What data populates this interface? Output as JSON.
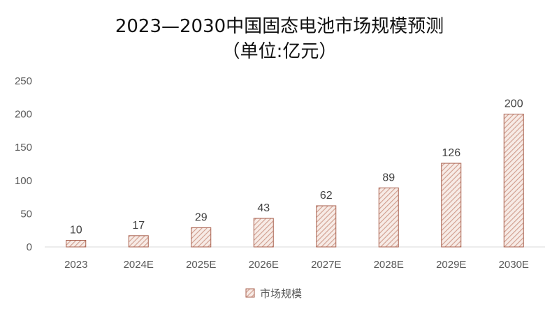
{
  "chart_data": {
    "type": "bar",
    "title": "2023—2030中国固态电池市场规模预测",
    "subtitle": "（单位:亿元）",
    "categories": [
      "2023",
      "2024E",
      "2025E",
      "2026E",
      "2027E",
      "2028E",
      "2029E",
      "2030E"
    ],
    "series": [
      {
        "name": "市场规模",
        "values": [
          10,
          17,
          29,
          43,
          62,
          89,
          126,
          200
        ]
      }
    ],
    "data_labels": [
      "10",
      "17",
      "29",
      "43",
      "62",
      "89",
      "126",
      "200"
    ],
    "y_ticks": [
      "0",
      "50",
      "100",
      "150",
      "200",
      "250"
    ],
    "ylim": [
      0,
      250
    ],
    "grid": false,
    "legend_position": "bottom",
    "bar_fill": "hatched",
    "colors": {
      "bar_stroke": "#a9614f",
      "bar_hatch": "#cf9c8c",
      "bar_bg": "#f7ebe6",
      "axis": "#d9d9d9"
    }
  }
}
